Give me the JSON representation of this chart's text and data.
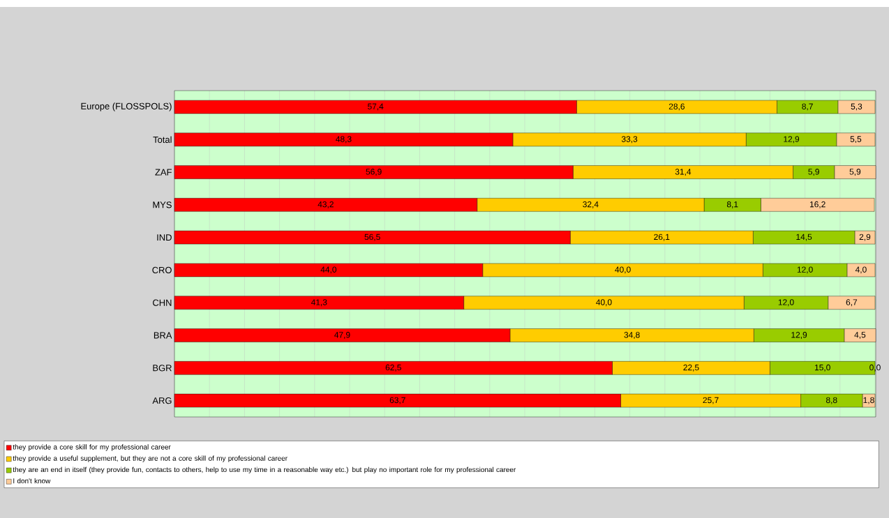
{
  "chart_data": {
    "type": "bar",
    "orientation": "horizontal",
    "stacked": true,
    "categories": [
      "Europe (FLOSSPOLS)",
      "Total",
      "ZAF",
      "MYS",
      "IND",
      "CRO",
      "CHN",
      "BRA",
      "BGR",
      "ARG"
    ],
    "series": [
      {
        "name": "they provide a core skill for my professional career",
        "color": "#ff0000",
        "values": [
          57.4,
          48.3,
          56.9,
          43.2,
          56.5,
          44.0,
          41.3,
          47.9,
          62.5,
          63.7
        ],
        "value_labels": [
          "57,4",
          "48,3",
          "56,9",
          "43,2",
          "56,5",
          "44,0",
          "41,3",
          "47,9",
          "62,5",
          "63,7"
        ]
      },
      {
        "name": "they provide a useful supplement, but they are not a core skill of my professional career",
        "color": "#ffcc00",
        "values": [
          28.6,
          33.3,
          31.4,
          32.4,
          26.1,
          40.0,
          40.0,
          34.8,
          22.5,
          25.7
        ],
        "value_labels": [
          "28,6",
          "33,3",
          "31,4",
          "32,4",
          "26,1",
          "40,0",
          "40,0",
          "34,8",
          "22,5",
          "25,7"
        ]
      },
      {
        "name": "they are an end in itself (they provide fun, contacts to others, help to use my time in a reasonable way etc.) but play no important role for my professional career",
        "color": "#99cc00",
        "values": [
          8.7,
          12.9,
          5.9,
          8.1,
          14.5,
          12.0,
          12.0,
          12.9,
          15.0,
          8.8
        ],
        "value_labels": [
          "8,7",
          "12,9",
          "5,9",
          "8,1",
          "14,5",
          "12,0",
          "12,0",
          "12,9",
          "15,0",
          "8,8"
        ]
      },
      {
        "name": "I don't know",
        "color": "#ffcc99",
        "values": [
          5.3,
          5.5,
          5.9,
          16.2,
          2.9,
          4.0,
          6.7,
          4.5,
          0.0,
          1.8
        ],
        "value_labels": [
          "5,3",
          "5,5",
          "5,9",
          "16,2",
          "2,9",
          "4,0",
          "6,7",
          "4,5",
          "0,0",
          "1,8"
        ]
      }
    ],
    "tick_labels": "y",
    "grid": "x",
    "legend": "bottom"
  }
}
